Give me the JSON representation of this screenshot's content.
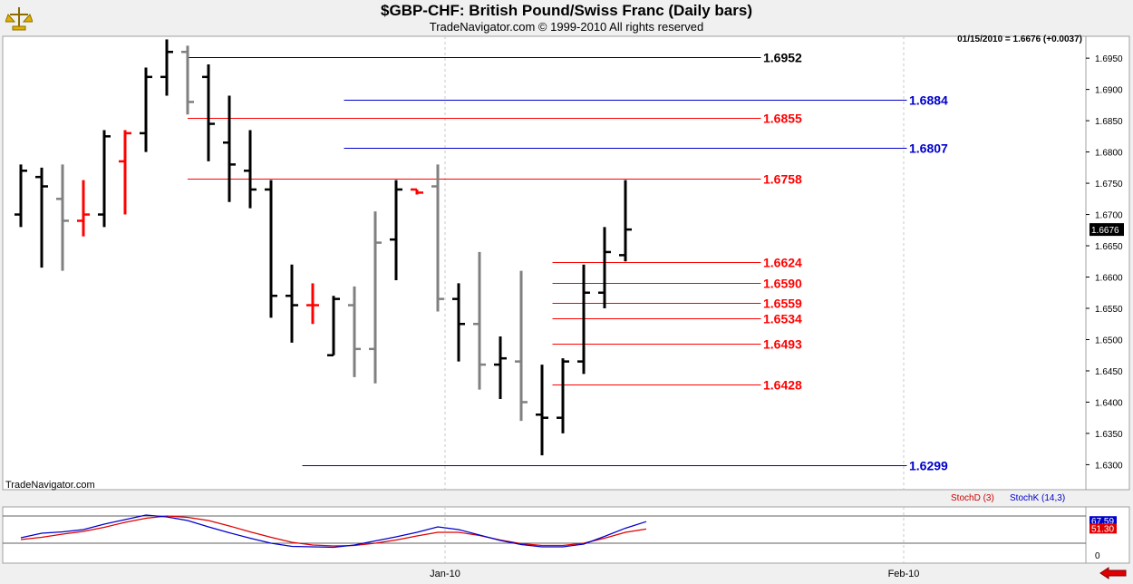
{
  "chart_data": {
    "type": "bar",
    "title": "$GBP-CHF:  British Pound/Swiss Franc  (Daily bars)",
    "subtitle": "TradeNavigator.com © 1999-2010 All rights reserved",
    "quote": "01/15/2010 = 1.6676 (+0.0037)",
    "watermark": "TradeNavigator.com",
    "last_price_label": "1.6676",
    "ylim": [
      1.626,
      1.6985
    ],
    "y_ticks": [
      1.63,
      1.635,
      1.64,
      1.645,
      1.65,
      1.655,
      1.66,
      1.665,
      1.67,
      1.675,
      1.68,
      1.685,
      1.69,
      1.695
    ],
    "x_ticks": [
      {
        "label": "Jan-10",
        "index": 20
      },
      {
        "label": "Feb-10",
        "index": 42
      }
    ],
    "colors": {
      "up": "#000000",
      "down": "#808080",
      "inside": "#ff0000",
      "red_line": "#ff0000",
      "blue_line": "#0000cc",
      "black_line": "#000000"
    },
    "bars": [
      {
        "o": 1.67,
        "h": 1.678,
        "l": 1.668,
        "c": 1.677,
        "color": "black"
      },
      {
        "o": 1.676,
        "h": 1.6775,
        "l": 1.6615,
        "c": 1.6745,
        "color": "black"
      },
      {
        "o": 1.6725,
        "h": 1.678,
        "l": 1.661,
        "c": 1.669,
        "color": "gray"
      },
      {
        "o": 1.669,
        "h": 1.6755,
        "l": 1.6665,
        "c": 1.67,
        "color": "red"
      },
      {
        "o": 1.67,
        "h": 1.6835,
        "l": 1.668,
        "c": 1.6825,
        "color": "black"
      },
      {
        "o": 1.6785,
        "h": 1.6835,
        "l": 1.67,
        "c": 1.683,
        "color": "red"
      },
      {
        "o": 1.683,
        "h": 1.6935,
        "l": 1.68,
        "c": 1.692,
        "color": "black"
      },
      {
        "o": 1.692,
        "h": 1.698,
        "l": 1.689,
        "c": 1.696,
        "color": "black"
      },
      {
        "o": 1.696,
        "h": 1.697,
        "l": 1.686,
        "c": 1.688,
        "color": "gray"
      },
      {
        "o": 1.692,
        "h": 1.694,
        "l": 1.6785,
        "c": 1.6845,
        "color": "black"
      },
      {
        "o": 1.6815,
        "h": 1.689,
        "l": 1.672,
        "c": 1.678,
        "color": "black"
      },
      {
        "o": 1.677,
        "h": 1.6835,
        "l": 1.671,
        "c": 1.674,
        "color": "black"
      },
      {
        "o": 1.674,
        "h": 1.6755,
        "l": 1.6535,
        "c": 1.657,
        "color": "black"
      },
      {
        "o": 1.657,
        "h": 1.662,
        "l": 1.6495,
        "c": 1.6555,
        "color": "black"
      },
      {
        "o": 1.6555,
        "h": 1.659,
        "l": 1.6525,
        "c": 1.6555,
        "color": "red"
      },
      {
        "o": 1.6475,
        "h": 1.657,
        "l": 1.6475,
        "c": 1.6565,
        "color": "black"
      },
      {
        "o": 1.6555,
        "h": 1.6585,
        "l": 1.644,
        "c": 1.6485,
        "color": "gray"
      },
      {
        "o": 1.6485,
        "h": 1.6705,
        "l": 1.643,
        "c": 1.6655,
        "color": "gray"
      },
      {
        "o": 1.666,
        "h": 1.6755,
        "l": 1.6595,
        "c": 1.674,
        "color": "black"
      },
      {
        "o": 1.674,
        "h": 1.674,
        "l": 1.6732,
        "c": 1.6735,
        "color": "red"
      },
      {
        "o": 1.6745,
        "h": 1.678,
        "l": 1.6545,
        "c": 1.6565,
        "color": "gray"
      },
      {
        "o": 1.6565,
        "h": 1.659,
        "l": 1.6465,
        "c": 1.6525,
        "color": "black"
      },
      {
        "o": 1.6525,
        "h": 1.664,
        "l": 1.642,
        "c": 1.646,
        "color": "gray"
      },
      {
        "o": 1.646,
        "h": 1.6505,
        "l": 1.6405,
        "c": 1.647,
        "color": "black"
      },
      {
        "o": 1.6465,
        "h": 1.661,
        "l": 1.637,
        "c": 1.64,
        "color": "gray"
      },
      {
        "o": 1.638,
        "h": 1.646,
        "l": 1.6315,
        "c": 1.6375,
        "color": "black"
      },
      {
        "o": 1.6375,
        "h": 1.647,
        "l": 1.635,
        "c": 1.6465,
        "color": "black"
      },
      {
        "o": 1.6465,
        "h": 1.662,
        "l": 1.6445,
        "c": 1.6575,
        "color": "black"
      },
      {
        "o": 1.6575,
        "h": 1.668,
        "l": 1.655,
        "c": 1.664,
        "color": "black"
      },
      {
        "o": 1.6635,
        "h": 1.6755,
        "l": 1.6625,
        "c": 1.6676,
        "color": "black"
      }
    ],
    "levels": [
      {
        "value": 1.6952,
        "label": "1.6952",
        "color": "black",
        "from": 8,
        "to": 35.5,
        "label_index": 36
      },
      {
        "value": 1.6884,
        "label": "1.6884",
        "color": "blue",
        "from": 15.5,
        "to": 42.5,
        "label_index": 43
      },
      {
        "value": 1.6855,
        "label": "1.6855",
        "color": "red",
        "from": 8,
        "to": 35.5,
        "label_index": 36
      },
      {
        "value": 1.6807,
        "label": "1.6807",
        "color": "blue",
        "from": 15.5,
        "to": 42.5,
        "label_index": 43
      },
      {
        "value": 1.6758,
        "label": "1.6758",
        "color": "red",
        "from": 8,
        "to": 35.5,
        "label_index": 36
      },
      {
        "value": 1.6624,
        "label": "1.6624",
        "color": "red",
        "from": 25.5,
        "to": 35.5,
        "label_index": 36
      },
      {
        "value": 1.659,
        "label": "1.6590",
        "color": "red",
        "from": 25.5,
        "to": 35.5,
        "label_index": 36
      },
      {
        "value": 1.6559,
        "label": "1.6559",
        "color": "red",
        "from": 25.5,
        "to": 35.5,
        "label_index": 36
      },
      {
        "value": 1.6534,
        "label": "1.6534",
        "color": "red",
        "from": 25.5,
        "to": 35.5,
        "label_index": 36
      },
      {
        "value": 1.6493,
        "label": "1.6493",
        "color": "red",
        "from": 25.5,
        "to": 35.5,
        "label_index": 36
      },
      {
        "value": 1.6428,
        "label": "1.6428",
        "color": "red",
        "from": 25.5,
        "to": 35.5,
        "label_index": 36
      },
      {
        "value": 1.6299,
        "label": "1.6299",
        "color": "blue",
        "from": 13.5,
        "to": 42.5,
        "label_index": 43
      }
    ],
    "stochastic": {
      "legend_d": "StochD (3)",
      "legend_k": "StochK (14,3)",
      "ylim": [
        0,
        100
      ],
      "y_tick_label": "0",
      "upper_band": 80,
      "lower_band": 20,
      "d_label": "51.30",
      "k_label": "67.59",
      "d_values": [
        28,
        33,
        40,
        46,
        55,
        66,
        75,
        80,
        77,
        70,
        58,
        45,
        33,
        22,
        16,
        14,
        15,
        20,
        27,
        36,
        44,
        44,
        37,
        27,
        19,
        15,
        15,
        20,
        31,
        44,
        51.3
      ],
      "k_values": [
        32,
        42,
        45,
        50,
        62,
        72,
        82,
        78,
        70,
        56,
        43,
        31,
        20,
        13,
        12,
        11,
        16,
        25,
        34,
        44,
        56,
        50,
        38,
        26,
        17,
        12,
        12,
        18,
        35,
        53,
        67.59
      ]
    }
  }
}
